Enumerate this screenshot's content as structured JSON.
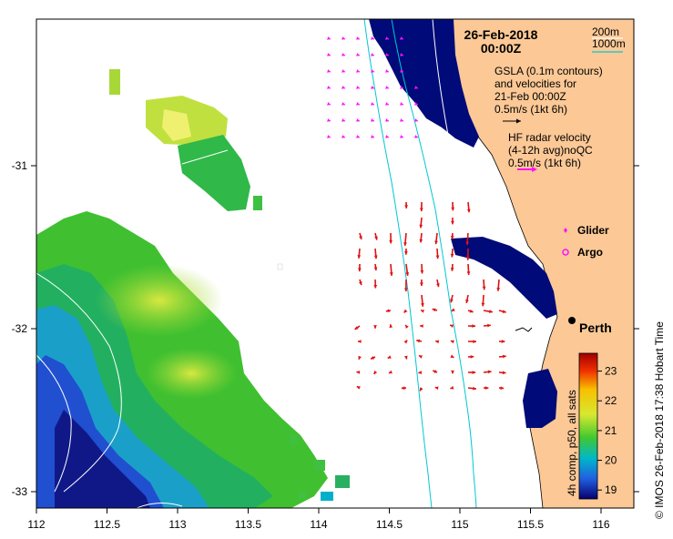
{
  "header": {
    "date": "26-Feb-2018",
    "time": "00:00Z"
  },
  "bathy_legend": {
    "label_200": "200m",
    "label_1000": "1000m",
    "color_200": "#ffffff",
    "color_1000": "#00c8d2"
  },
  "gsla_legend": {
    "line1": "GSLA (0.1m contours)",
    "line2": "and velocities for",
    "line3": "21-Feb 00:00Z",
    "scale": "0.5m/s (1kt 6h)"
  },
  "hf_legend": {
    "line1": "HF radar velocity",
    "line2": "(4-12h avg)noQC",
    "scale": "0.5m/s (1kt 6h)"
  },
  "markers": {
    "glider": "Glider",
    "argo": "Argo",
    "city": "Perth"
  },
  "colorbar": {
    "label": "4h comp, p50, all sats",
    "ticks": [
      "19",
      "20",
      "21",
      "22",
      "23"
    ],
    "range": [
      18.7,
      23.6
    ]
  },
  "x_axis": {
    "ticks": [
      "112",
      "112.5",
      "113",
      "113.5",
      "114",
      "114.5",
      "115",
      "115.5",
      "116"
    ]
  },
  "y_axis": {
    "ticks": [
      "-31",
      "-32",
      "-33"
    ]
  },
  "credit": "© IMOS 26-Feb-2018 17:38 Hobart Time",
  "colors": {
    "land": "#fbc896",
    "cloud": "#000a78",
    "hf_arrow": "#e01010",
    "glider": "#ff10ff",
    "gsla_arrow": "#ff10ff"
  }
}
